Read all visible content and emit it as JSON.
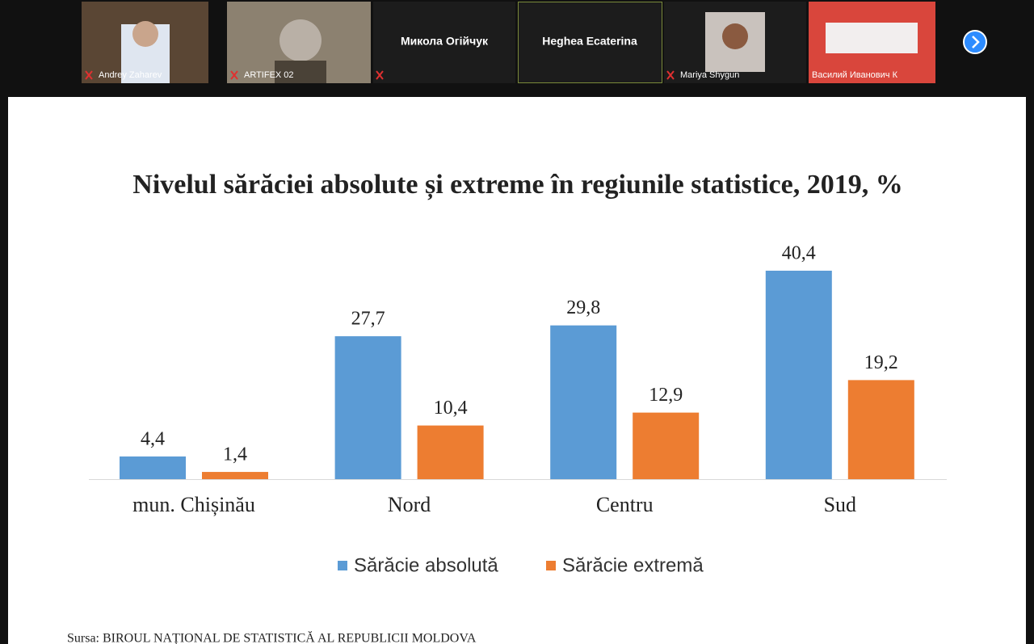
{
  "participants": [
    "Andrey Zaharev",
    "ARTIFEX 02",
    "Микола Огійчук",
    "Heghea Ecaterina",
    "Mariya Shygun",
    "Василий Иванович К"
  ],
  "chart_data": {
    "type": "bar",
    "title": "Nivelul sărăciei absolute și extreme în regiunile statistice, 2019, %",
    "categories": [
      "mun. Chișinău",
      "Nord",
      "Centru",
      "Sud"
    ],
    "series": [
      {
        "name": "Sărăcie absolută",
        "color": "#5b9bd5",
        "values": [
          4.4,
          27.7,
          29.8,
          40.4
        ],
        "value_labels": [
          "4,4",
          "27,7",
          "29,8",
          "40,4"
        ]
      },
      {
        "name": "Sărăcie extremă",
        "color": "#ed7d31",
        "values": [
          1.4,
          10.4,
          12.9,
          19.2
        ],
        "value_labels": [
          "1,4",
          "10,4",
          "12,9",
          "19,2"
        ]
      }
    ],
    "legend": "bottom"
  },
  "source": "Sursa: BIROUL NAȚIONAL DE STATISTICĂ AL REPUBLICII MOLDOVA"
}
